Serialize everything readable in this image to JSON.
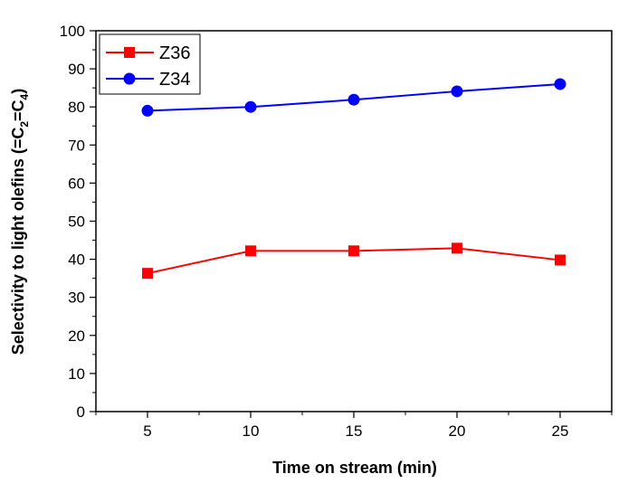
{
  "chart_data": {
    "type": "line",
    "title": "",
    "xlabel": "Time on stream (min)",
    "ylabel": {
      "parts": [
        "Selectivity to light olefins (=C",
        "2",
        "=C",
        "4",
        ")"
      ]
    },
    "x": [
      5,
      10,
      15,
      20,
      25
    ],
    "xlim": [
      2.5,
      27.5
    ],
    "ylim": [
      0,
      100
    ],
    "x_ticks": [
      5,
      10,
      15,
      20,
      25
    ],
    "y_ticks": [
      0,
      10,
      20,
      30,
      40,
      50,
      60,
      70,
      80,
      90,
      100
    ],
    "grid": false,
    "legend_position": "top-left",
    "series": [
      {
        "name": "Z36",
        "values": [
          36.3,
          42.2,
          42.2,
          42.9,
          39.8
        ],
        "color": "#ff0000",
        "marker": "square"
      },
      {
        "name": "Z34",
        "values": [
          79.0,
          80.0,
          81.9,
          84.1,
          86.0
        ],
        "color": "#0000ff",
        "marker": "circle"
      }
    ]
  }
}
